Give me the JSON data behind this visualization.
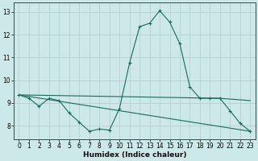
{
  "xlabel": "Humidex (Indice chaleur)",
  "bg_color": "#cce8e8",
  "grid_color": "#b8d0d0",
  "line_color": "#1a6b5a",
  "xlim": [
    -0.5,
    23.5
  ],
  "ylim": [
    7.4,
    13.4
  ],
  "yticks": [
    8,
    9,
    10,
    11,
    12,
    13
  ],
  "xticks": [
    0,
    1,
    2,
    3,
    4,
    5,
    6,
    7,
    8,
    9,
    10,
    11,
    12,
    13,
    14,
    15,
    16,
    17,
    18,
    19,
    20,
    21,
    22,
    23
  ],
  "line1_x": [
    0,
    1,
    2,
    3,
    4,
    5,
    6,
    7,
    8,
    9,
    10,
    11,
    12,
    13,
    14,
    15,
    16,
    17,
    18,
    19,
    20,
    21,
    22,
    23
  ],
  "line1_y": [
    9.35,
    9.2,
    8.85,
    9.2,
    9.1,
    8.55,
    8.15,
    7.75,
    7.85,
    7.8,
    8.75,
    10.75,
    12.35,
    12.5,
    13.05,
    12.55,
    11.6,
    9.7,
    9.2,
    9.2,
    9.2,
    8.65,
    8.1,
    7.75
  ],
  "line2_x": [
    0,
    20,
    23
  ],
  "line2_y": [
    9.35,
    9.2,
    9.1
  ],
  "line3_x": [
    0,
    23
  ],
  "line3_y": [
    9.35,
    7.75
  ]
}
